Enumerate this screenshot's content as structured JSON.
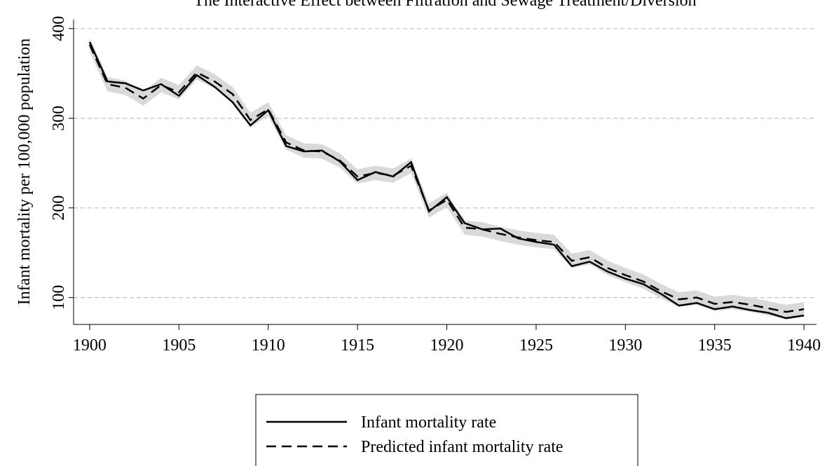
{
  "chart_data": {
    "type": "line",
    "title": "The Interactive Effect between Filtration and Sewage Treatment/Diversion",
    "ylabel": "Infant mortality per 100,000 population",
    "x": [
      1900,
      1901,
      1902,
      1903,
      1904,
      1905,
      1906,
      1907,
      1908,
      1909,
      1910,
      1911,
      1912,
      1913,
      1914,
      1915,
      1916,
      1917,
      1918,
      1919,
      1920,
      1921,
      1922,
      1923,
      1924,
      1925,
      1926,
      1927,
      1928,
      1929,
      1930,
      1931,
      1932,
      1933,
      1934,
      1935,
      1936,
      1937,
      1938,
      1939,
      1940
    ],
    "series": [
      {
        "name": "Infant mortality rate",
        "color": "#000000",
        "dash": "solid",
        "values": [
          385,
          341,
          339,
          331,
          338,
          325,
          348,
          335,
          318,
          292,
          309,
          269,
          263,
          264,
          252,
          231,
          240,
          235,
          251,
          196,
          212,
          183,
          176,
          177,
          166,
          162,
          159,
          135,
          140,
          129,
          121,
          115,
          104,
          91,
          94,
          87,
          90,
          86,
          83,
          77,
          80
        ]
      },
      {
        "name": "Predicted infant mortality rate",
        "color": "#000000",
        "dash": "dashed",
        "values": [
          382,
          338,
          334,
          322,
          337,
          329,
          351,
          341,
          327,
          298,
          310,
          273,
          264,
          263,
          253,
          235,
          239,
          236,
          247,
          197,
          209,
          178,
          176,
          171,
          167,
          164,
          162,
          141,
          145,
          133,
          125,
          118,
          107,
          98,
          100,
          93,
          95,
          92,
          88,
          84,
          87
        ]
      }
    ],
    "band": {
      "color": "#d9d9d9",
      "upper": [
        390,
        346,
        342,
        330,
        345,
        337,
        359,
        349,
        335,
        306,
        318,
        281,
        272,
        271,
        261,
        243,
        247,
        244,
        255,
        205,
        217,
        186,
        184,
        179,
        175,
        172,
        170,
        149,
        153,
        141,
        133,
        126,
        115,
        106,
        108,
        101,
        103,
        100,
        96,
        92,
        95
      ],
      "lower": [
        374,
        330,
        326,
        314,
        329,
        321,
        343,
        333,
        319,
        290,
        302,
        265,
        256,
        255,
        245,
        227,
        231,
        228,
        239,
        189,
        201,
        170,
        168,
        163,
        159,
        156,
        154,
        133,
        137,
        125,
        117,
        110,
        99,
        90,
        92,
        85,
        87,
        84,
        80,
        76,
        79
      ]
    },
    "xlim": [
      1899.1,
      1940.7
    ],
    "ylim": [
      70,
      410
    ],
    "xticks": [
      1900,
      1905,
      1910,
      1915,
      1920,
      1925,
      1930,
      1935,
      1940
    ],
    "yticks": [
      100,
      200,
      300,
      400
    ],
    "grid": true,
    "legend": "bottom"
  }
}
